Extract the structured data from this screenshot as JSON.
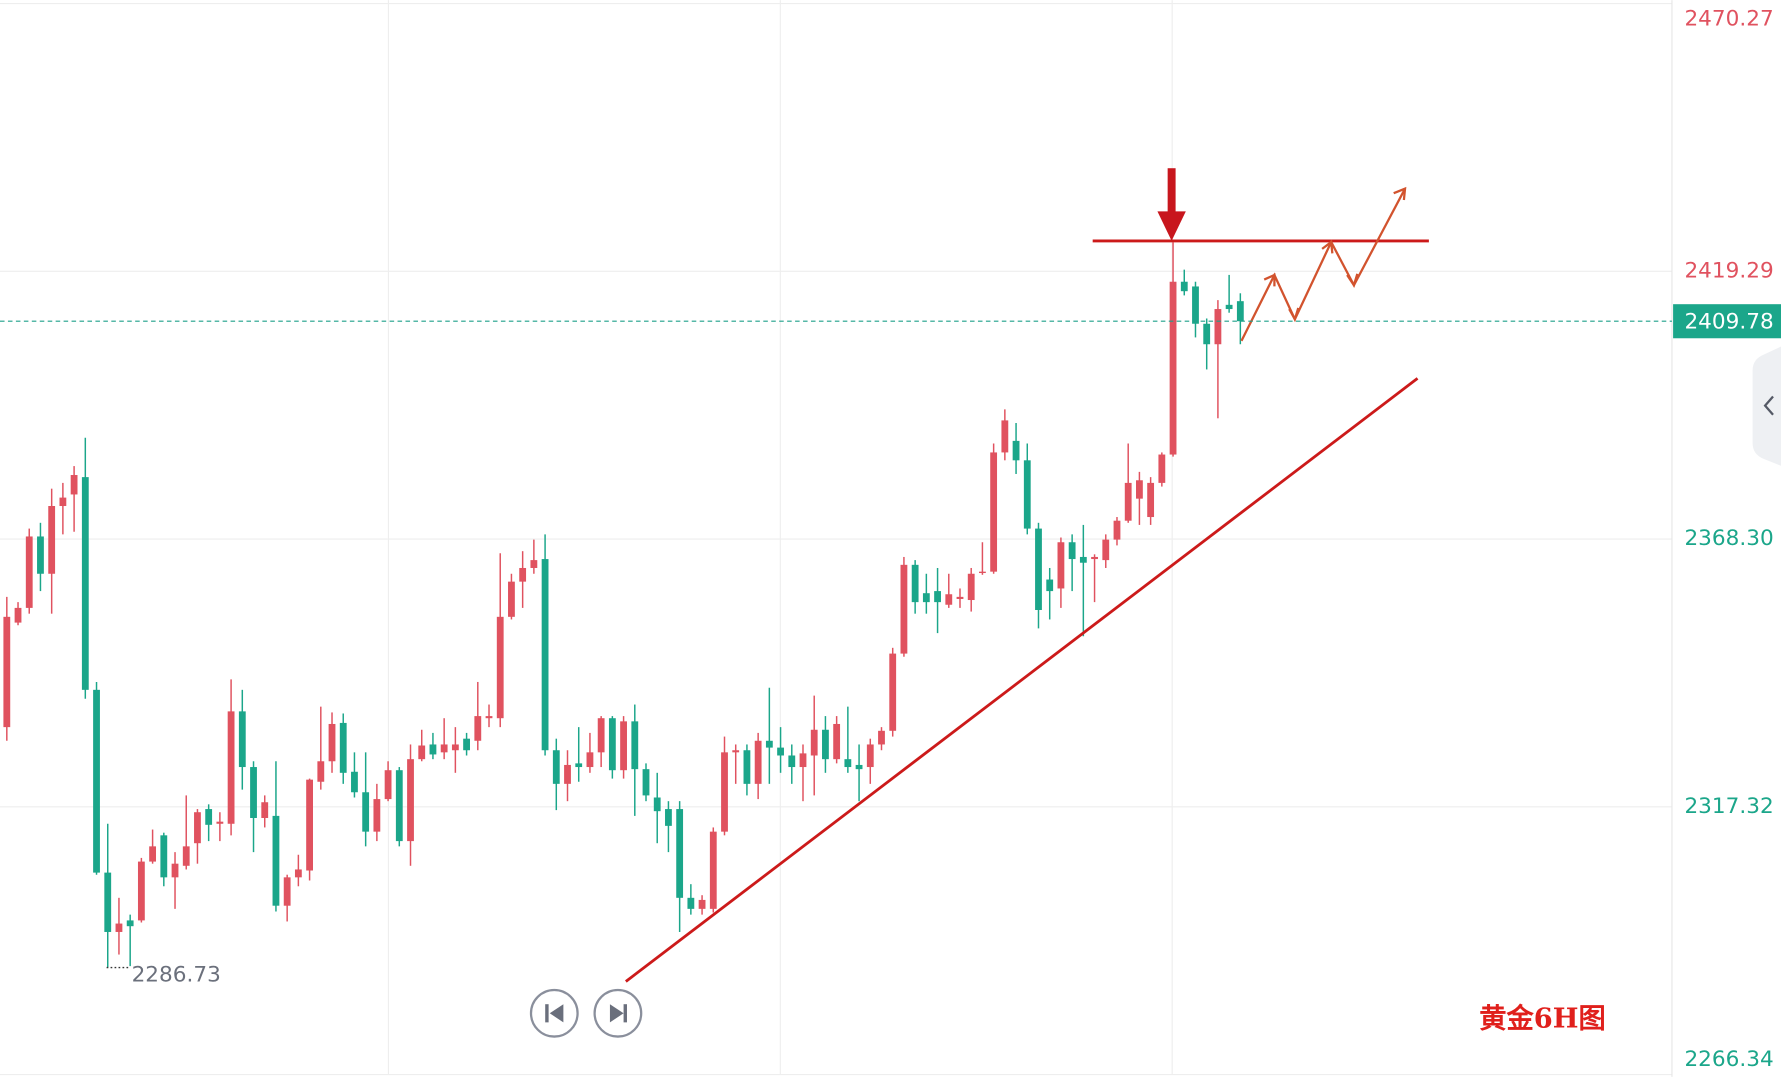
{
  "chart_data": {
    "type": "candlestick",
    "annotation": "黄金6H图",
    "up_color": "#e0525f",
    "down_color": "#1ba68a",
    "open": [
      2332.5,
      2352.4,
      2355.2,
      2368.8,
      2361.7,
      2374.6,
      2376.8,
      2380.1,
      2339.6,
      2304.8,
      2293.5,
      2295.7,
      2295.7,
      2306.9,
      2311.9,
      2303.9,
      2306.1,
      2310.4,
      2316.9,
      2314.1,
      2314.1,
      2335.5,
      2324.9,
      2315.2,
      2315.6,
      2298.5,
      2303.9,
      2305.2,
      2322.1,
      2326.0,
      2333.3,
      2324.0,
      2320.1,
      2312.6,
      2318.8,
      2324.3,
      2310.8,
      2326.4,
      2329.2,
      2327.7,
      2328.1,
      2330.3,
      2329.9,
      2334.2,
      2334.2,
      2353.5,
      2360.2,
      2362.8,
      2364.5,
      2328.1,
      2321.7,
      2325.6,
      2324.9,
      2327.7,
      2334.2,
      2324.3,
      2333.6,
      2324.5,
      2319.1,
      2316.9,
      2316.9,
      2300.0,
      2297.9,
      2297.9,
      2312.6,
      2327.7,
      2328.1,
      2321.7,
      2329.9,
      2328.6,
      2327.1,
      2324.9,
      2327.1,
      2332.0,
      2326.4,
      2326.4,
      2325.3,
      2324.9,
      2329.2,
      2331.8,
      2346.5,
      2363.4,
      2358.0,
      2358.4,
      2355.8,
      2356.9,
      2356.7,
      2361.9,
      2362.1,
      2384.8,
      2387.0,
      2383.3,
      2370.3,
      2360.6,
      2358.9,
      2367.7,
      2364.9,
      2364.5,
      2364.3,
      2368.2,
      2371.8,
      2376.0,
      2372.5,
      2379.0,
      2384.4,
      2417.3,
      2416.4,
      2409.3,
      2405.4,
      2412.9,
      2413.6
    ],
    "high": [
      2357.3,
      2356.3,
      2370.3,
      2371.4,
      2377.9,
      2379.0,
      2382.2,
      2387.6,
      2341.1,
      2314.1,
      2300.0,
      2296.8,
      2307.6,
      2313.0,
      2312.4,
      2308.7,
      2319.5,
      2316.9,
      2317.8,
      2316.3,
      2341.6,
      2339.6,
      2326.0,
      2319.5,
      2326.0,
      2304.4,
      2308.2,
      2322.7,
      2336.4,
      2335.3,
      2335.1,
      2327.7,
      2327.7,
      2321.7,
      2326.0,
      2324.9,
      2329.2,
      2332.0,
      2331.4,
      2334.2,
      2332.5,
      2331.4,
      2341.1,
      2336.8,
      2365.6,
      2361.7,
      2366.0,
      2368.2,
      2369.2,
      2330.3,
      2328.1,
      2332.5,
      2331.4,
      2334.6,
      2334.6,
      2334.6,
      2336.8,
      2325.6,
      2323.8,
      2318.4,
      2318.4,
      2302.6,
      2300.5,
      2313.4,
      2330.7,
      2329.2,
      2329.2,
      2331.4,
      2340.0,
      2332.5,
      2329.2,
      2329.2,
      2338.5,
      2334.6,
      2334.6,
      2336.4,
      2329.2,
      2330.3,
      2332.5,
      2347.6,
      2364.9,
      2364.3,
      2361.7,
      2362.8,
      2361.7,
      2358.9,
      2362.8,
      2367.7,
      2386.5,
      2393.0,
      2390.4,
      2386.5,
      2371.4,
      2362.8,
      2368.6,
      2369.2,
      2371.0,
      2365.4,
      2369.2,
      2372.5,
      2386.5,
      2381.1,
      2380.1,
      2384.8,
      2424.8,
      2419.6,
      2417.3,
      2410.3,
      2413.8,
      2418.6,
      2415.1
    ],
    "low": [
      2329.9,
      2351.9,
      2354.1,
      2358.4,
      2354.1,
      2369.2,
      2369.7,
      2337.9,
      2304.4,
      2286.73,
      2289.2,
      2287.0,
      2295.3,
      2306.5,
      2302.2,
      2297.9,
      2305.4,
      2306.5,
      2310.8,
      2310.8,
      2311.9,
      2320.6,
      2308.7,
      2313.4,
      2297.4,
      2295.5,
      2302.2,
      2303.3,
      2320.6,
      2323.8,
      2321.7,
      2319.1,
      2309.8,
      2310.8,
      2318.4,
      2309.8,
      2306.1,
      2326.0,
      2326.4,
      2326.4,
      2323.8,
      2327.1,
      2328.1,
      2332.5,
      2332.5,
      2353.0,
      2355.2,
      2361.7,
      2327.1,
      2316.7,
      2318.4,
      2322.1,
      2323.8,
      2324.9,
      2322.7,
      2322.7,
      2315.6,
      2318.4,
      2310.4,
      2308.7,
      2293.5,
      2296.8,
      2296.8,
      2297.2,
      2311.9,
      2321.7,
      2319.5,
      2318.8,
      2321.7,
      2323.8,
      2321.7,
      2318.4,
      2319.5,
      2323.8,
      2325.6,
      2323.8,
      2318.4,
      2321.7,
      2328.1,
      2330.7,
      2345.9,
      2354.1,
      2354.1,
      2350.4,
      2355.2,
      2355.2,
      2354.5,
      2361.5,
      2361.7,
      2383.3,
      2380.7,
      2369.2,
      2351.3,
      2353.0,
      2355.2,
      2358.4,
      2349.8,
      2356.3,
      2362.8,
      2367.1,
      2371.4,
      2371.0,
      2371.0,
      2378.3,
      2384.0,
      2414.7,
      2406.7,
      2400.6,
      2391.3,
      2411.4,
      2405.4
    ],
    "close": [
      2353.5,
      2355.2,
      2368.8,
      2361.7,
      2374.6,
      2376.2,
      2380.5,
      2339.6,
      2304.8,
      2293.5,
      2295.1,
      2294.6,
      2306.9,
      2309.8,
      2303.9,
      2306.5,
      2309.8,
      2316.3,
      2313.9,
      2314.5,
      2335.5,
      2324.9,
      2315.2,
      2318.2,
      2298.5,
      2303.9,
      2305.4,
      2322.5,
      2326.0,
      2333.1,
      2323.8,
      2320.1,
      2312.6,
      2318.8,
      2324.3,
      2310.8,
      2326.4,
      2329.0,
      2327.3,
      2329.2,
      2329.2,
      2328.1,
      2334.6,
      2334.6,
      2353.5,
      2360.2,
      2362.8,
      2364.3,
      2328.1,
      2321.7,
      2325.3,
      2324.9,
      2327.7,
      2334.2,
      2324.3,
      2333.6,
      2324.5,
      2319.5,
      2316.5,
      2313.7,
      2300.0,
      2297.9,
      2299.6,
      2312.6,
      2327.7,
      2328.1,
      2321.7,
      2329.9,
      2328.6,
      2327.1,
      2324.9,
      2327.5,
      2332.0,
      2326.4,
      2333.1,
      2324.9,
      2324.5,
      2329.2,
      2331.8,
      2346.5,
      2363.4,
      2356.3,
      2356.3,
      2356.3,
      2357.8,
      2357.3,
      2361.7,
      2362.1,
      2384.8,
      2390.9,
      2383.3,
      2370.3,
      2354.8,
      2358.4,
      2367.7,
      2364.5,
      2363.8,
      2364.9,
      2368.2,
      2371.8,
      2379.0,
      2379.5,
      2379.0,
      2384.4,
      2417.3,
      2415.5,
      2409.3,
      2405.4,
      2412.1,
      2412.1,
      2409.78
    ],
    "ylim": [
      2266.34,
      2470.27
    ],
    "yticks": [
      2266.34,
      2317.32,
      {
        "value": 2368.3,
        "label": "2368.30"
      },
      2419.29,
      2470.27
    ],
    "grid": true
  }
}
